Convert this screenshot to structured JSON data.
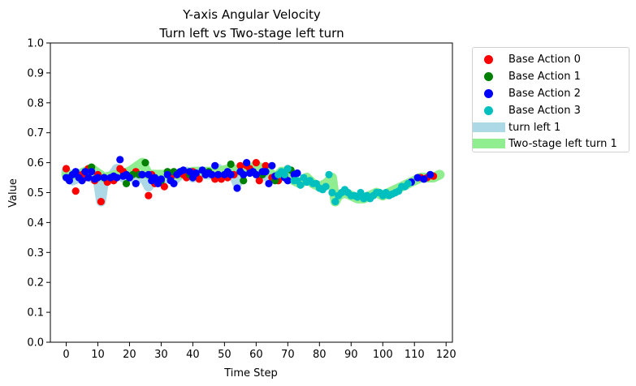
{
  "chart_data": {
    "type": "scatter",
    "title": "Y-axis Angular Velocity",
    "subtitle": "Turn left vs Two-stage left turn",
    "xlabel": "Time Step",
    "ylabel": "Value",
    "xlim": [
      -5,
      122
    ],
    "ylim": [
      0,
      1
    ],
    "xticks": [
      "0",
      "10",
      "20",
      "30",
      "40",
      "50",
      "60",
      "70",
      "80",
      "90",
      "100",
      "110",
      "120"
    ],
    "yticks": [
      "0.0",
      "0.1",
      "0.2",
      "0.3",
      "0.4",
      "0.5",
      "0.6",
      "0.7",
      "0.8",
      "0.9",
      "1.0"
    ],
    "grid": false,
    "legend_position": "outside-top-right",
    "bands": [
      {
        "name": "turn left 1",
        "color": "#add8e6",
        "x": [
          0,
          2,
          4,
          6,
          8,
          10,
          11,
          12,
          14,
          16,
          18,
          20,
          22,
          24,
          26,
          28,
          30,
          32,
          34,
          36,
          38,
          40,
          42,
          44,
          46,
          48,
          50,
          52,
          54,
          56,
          58,
          60,
          62,
          64,
          66,
          68,
          70
        ],
        "y": [
          0.57,
          0.54,
          0.55,
          0.56,
          0.55,
          0.54,
          0.47,
          0.54,
          0.55,
          0.58,
          0.55,
          0.57,
          0.54,
          0.56,
          0.52,
          0.55,
          0.54,
          0.55,
          0.54,
          0.56,
          0.57,
          0.55,
          0.57,
          0.56,
          0.56,
          0.58,
          0.56,
          0.58,
          0.53,
          0.57,
          0.58,
          0.57,
          0.56,
          0.55,
          0.55,
          0.56,
          0.55
        ]
      },
      {
        "name": "Two-stage left turn 1",
        "color": "#90ee90",
        "x": [
          0,
          4,
          8,
          12,
          16,
          20,
          24,
          26,
          28,
          32,
          36,
          40,
          44,
          48,
          52,
          56,
          60,
          64,
          66,
          68,
          70,
          72,
          74,
          76,
          78,
          80,
          82,
          84,
          85,
          86,
          88,
          90,
          92,
          94,
          96,
          98,
          100,
          102,
          104,
          106,
          108,
          110,
          112,
          114,
          116,
          118
        ],
        "y": [
          0.56,
          0.56,
          0.58,
          0.55,
          0.56,
          0.57,
          0.6,
          0.56,
          0.56,
          0.56,
          0.56,
          0.57,
          0.57,
          0.57,
          0.58,
          0.57,
          0.59,
          0.57,
          0.55,
          0.57,
          0.57,
          0.54,
          0.53,
          0.55,
          0.53,
          0.52,
          0.53,
          0.55,
          0.47,
          0.49,
          0.5,
          0.49,
          0.48,
          0.48,
          0.49,
          0.5,
          0.49,
          0.5,
          0.51,
          0.52,
          0.53,
          0.54,
          0.55,
          0.55,
          0.55,
          0.56
        ]
      }
    ],
    "series": [
      {
        "name": "Base Action 0",
        "color": "#ff0000",
        "points": [
          [
            0,
            0.58
          ],
          [
            3,
            0.505
          ],
          [
            5,
            0.56
          ],
          [
            6,
            0.55
          ],
          [
            7,
            0.58
          ],
          [
            9,
            0.54
          ],
          [
            10,
            0.56
          ],
          [
            11,
            0.47
          ],
          [
            13,
            0.535
          ],
          [
            15,
            0.54
          ],
          [
            17,
            0.58
          ],
          [
            18,
            0.57
          ],
          [
            20,
            0.55
          ],
          [
            22,
            0.57
          ],
          [
            24,
            0.56
          ],
          [
            26,
            0.49
          ],
          [
            27,
            0.56
          ],
          [
            28,
            0.53
          ],
          [
            29,
            0.54
          ],
          [
            31,
            0.52
          ],
          [
            33,
            0.55
          ],
          [
            35,
            0.56
          ],
          [
            37,
            0.56
          ],
          [
            38,
            0.55
          ],
          [
            40,
            0.57
          ],
          [
            41,
            0.56
          ],
          [
            42,
            0.545
          ],
          [
            44,
            0.56
          ],
          [
            46,
            0.56
          ],
          [
            47,
            0.545
          ],
          [
            49,
            0.545
          ],
          [
            51,
            0.55
          ],
          [
            53,
            0.56
          ],
          [
            55,
            0.59
          ],
          [
            57,
            0.59
          ],
          [
            58,
            0.58
          ],
          [
            60,
            0.6
          ],
          [
            61,
            0.54
          ],
          [
            63,
            0.59
          ],
          [
            65,
            0.55
          ],
          [
            67,
            0.54
          ],
          [
            70,
            0.58
          ],
          [
            112,
            0.55
          ],
          [
            114,
            0.55
          ],
          [
            116,
            0.555
          ]
        ]
      },
      {
        "name": "Base Action 1",
        "color": "#008000",
        "points": [
          [
            1,
            0.55
          ],
          [
            8,
            0.585
          ],
          [
            12,
            0.55
          ],
          [
            19,
            0.53
          ],
          [
            21,
            0.56
          ],
          [
            23,
            0.56
          ],
          [
            25,
            0.6
          ],
          [
            30,
            0.54
          ],
          [
            32,
            0.57
          ],
          [
            34,
            0.57
          ],
          [
            39,
            0.56
          ],
          [
            45,
            0.57
          ],
          [
            52,
            0.595
          ],
          [
            56,
            0.54
          ],
          [
            62,
            0.56
          ],
          [
            66,
            0.54
          ],
          [
            71,
            0.575
          ]
        ]
      },
      {
        "name": "Base Action 2",
        "color": "#0000ff",
        "points": [
          [
            0,
            0.55
          ],
          [
            1,
            0.54
          ],
          [
            2,
            0.56
          ],
          [
            3,
            0.57
          ],
          [
            4,
            0.55
          ],
          [
            5,
            0.54
          ],
          [
            6,
            0.57
          ],
          [
            7,
            0.55
          ],
          [
            8,
            0.57
          ],
          [
            9,
            0.545
          ],
          [
            10,
            0.55
          ],
          [
            12,
            0.55
          ],
          [
            14,
            0.55
          ],
          [
            15,
            0.555
          ],
          [
            16,
            0.55
          ],
          [
            17,
            0.61
          ],
          [
            18,
            0.555
          ],
          [
            19,
            0.56
          ],
          [
            20,
            0.55
          ],
          [
            22,
            0.53
          ],
          [
            24,
            0.56
          ],
          [
            26,
            0.56
          ],
          [
            27,
            0.54
          ],
          [
            28,
            0.55
          ],
          [
            29,
            0.53
          ],
          [
            30,
            0.545
          ],
          [
            32,
            0.56
          ],
          [
            33,
            0.54
          ],
          [
            34,
            0.53
          ],
          [
            35,
            0.56
          ],
          [
            36,
            0.57
          ],
          [
            37,
            0.575
          ],
          [
            39,
            0.57
          ],
          [
            40,
            0.55
          ],
          [
            41,
            0.565
          ],
          [
            43,
            0.575
          ],
          [
            44,
            0.56
          ],
          [
            45,
            0.565
          ],
          [
            46,
            0.56
          ],
          [
            47,
            0.59
          ],
          [
            48,
            0.56
          ],
          [
            50,
            0.56
          ],
          [
            51,
            0.57
          ],
          [
            52,
            0.56
          ],
          [
            54,
            0.515
          ],
          [
            55,
            0.57
          ],
          [
            56,
            0.56
          ],
          [
            57,
            0.6
          ],
          [
            58,
            0.565
          ],
          [
            59,
            0.57
          ],
          [
            60,
            0.56
          ],
          [
            62,
            0.57
          ],
          [
            63,
            0.57
          ],
          [
            64,
            0.53
          ],
          [
            65,
            0.59
          ],
          [
            66,
            0.555
          ],
          [
            69,
            0.55
          ],
          [
            70,
            0.54
          ],
          [
            72,
            0.56
          ],
          [
            73,
            0.565
          ],
          [
            109,
            0.535
          ],
          [
            111,
            0.55
          ],
          [
            113,
            0.545
          ],
          [
            115,
            0.56
          ]
        ]
      },
      {
        "name": "Base Action 3",
        "color": "#00bfbf",
        "points": [
          [
            67,
            0.56
          ],
          [
            68,
            0.57
          ],
          [
            69,
            0.56
          ],
          [
            70,
            0.58
          ],
          [
            72,
            0.54
          ],
          [
            73,
            0.54
          ],
          [
            74,
            0.525
          ],
          [
            75,
            0.55
          ],
          [
            76,
            0.535
          ],
          [
            77,
            0.54
          ],
          [
            78,
            0.53
          ],
          [
            79,
            0.53
          ],
          [
            80,
            0.515
          ],
          [
            81,
            0.51
          ],
          [
            82,
            0.52
          ],
          [
            83,
            0.56
          ],
          [
            84,
            0.5
          ],
          [
            85,
            0.47
          ],
          [
            86,
            0.49
          ],
          [
            87,
            0.5
          ],
          [
            88,
            0.51
          ],
          [
            89,
            0.5
          ],
          [
            90,
            0.49
          ],
          [
            91,
            0.49
          ],
          [
            92,
            0.485
          ],
          [
            93,
            0.5
          ],
          [
            94,
            0.48
          ],
          [
            95,
            0.49
          ],
          [
            96,
            0.48
          ],
          [
            97,
            0.49
          ],
          [
            98,
            0.5
          ],
          [
            99,
            0.5
          ],
          [
            100,
            0.49
          ],
          [
            101,
            0.5
          ],
          [
            102,
            0.49
          ],
          [
            103,
            0.495
          ],
          [
            104,
            0.5
          ],
          [
            105,
            0.505
          ],
          [
            106,
            0.52
          ],
          [
            107,
            0.52
          ],
          [
            108,
            0.53
          ]
        ]
      }
    ]
  }
}
